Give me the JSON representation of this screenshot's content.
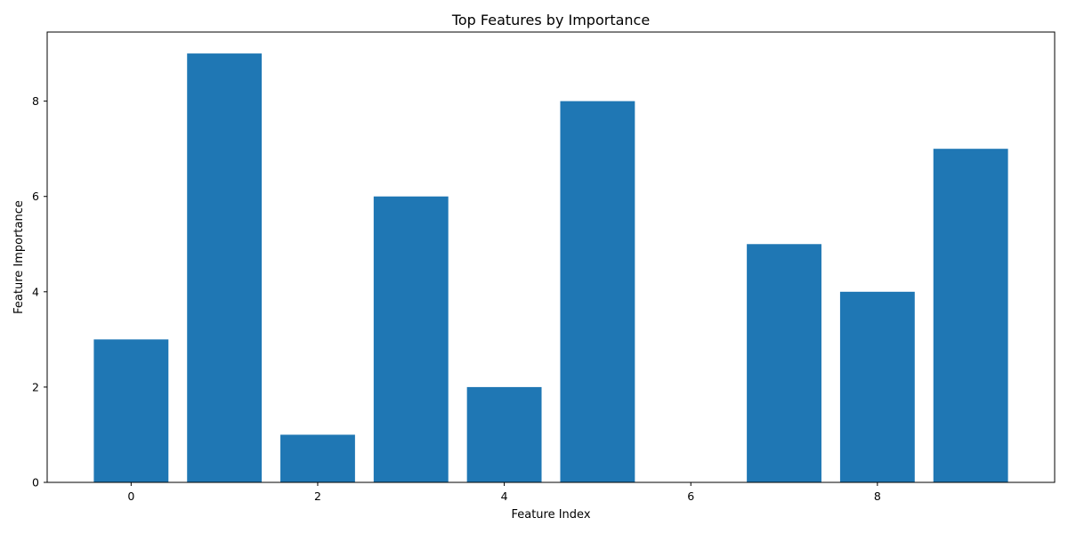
{
  "chart_data": {
    "type": "bar",
    "title": "Top Features by Importance",
    "xlabel": "Feature Index",
    "ylabel": "Feature Importance",
    "x": [
      0,
      1,
      2,
      3,
      4,
      5,
      6,
      7,
      8,
      9
    ],
    "values": [
      3,
      9,
      1,
      6,
      2,
      8,
      0,
      5,
      4,
      7
    ],
    "xlim": [
      -0.9,
      9.9
    ],
    "ylim": [
      0,
      9.45
    ],
    "xticks": [
      0,
      2,
      4,
      6,
      8
    ],
    "xtick_labels": [
      "0",
      "2",
      "4",
      "6",
      "8"
    ],
    "yticks": [
      0,
      2,
      4,
      6,
      8
    ],
    "ytick_labels": [
      "0",
      "2",
      "4",
      "6",
      "8"
    ],
    "bar_width": 0.8,
    "bar_color": "#1f77b4",
    "grid": false,
    "legend": null
  }
}
